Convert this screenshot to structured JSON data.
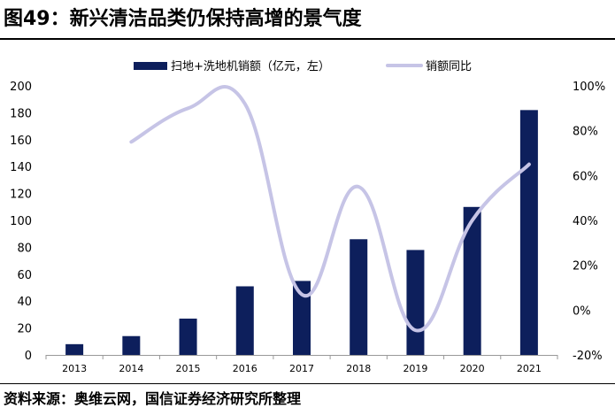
{
  "header": {
    "title": "图49：新兴清洁品类仍保持高增的景气度"
  },
  "footer": {
    "source": "资料来源：奥维云网，国信证券经济研究所整理"
  },
  "colors": {
    "bar": "#0d1f5c",
    "line": "#c6c4e6",
    "axis": "#999999"
  },
  "chart_data": {
    "type": "bar+line",
    "categories": [
      "2013",
      "2014",
      "2015",
      "2016",
      "2017",
      "2018",
      "2019",
      "2020",
      "2021"
    ],
    "series": [
      {
        "name": "扫地+洗地机销额（亿元，左）",
        "type": "bar",
        "axis": "left",
        "values": [
          8,
          14,
          27,
          51,
          55,
          86,
          78,
          110,
          182
        ]
      },
      {
        "name": "销额同比",
        "type": "line",
        "axis": "right",
        "values": [
          null,
          75,
          90,
          92,
          7,
          55,
          -9,
          40,
          65
        ]
      }
    ],
    "left_axis": {
      "min": 0,
      "max": 200,
      "ticks": [
        "0",
        "20",
        "40",
        "60",
        "80",
        "100",
        "120",
        "140",
        "160",
        "180",
        "200"
      ]
    },
    "right_axis": {
      "min": -20,
      "max": 100,
      "ticks": [
        "-20%",
        "0%",
        "20%",
        "40%",
        "60%",
        "80%",
        "100%"
      ]
    },
    "legend_position": "top"
  }
}
